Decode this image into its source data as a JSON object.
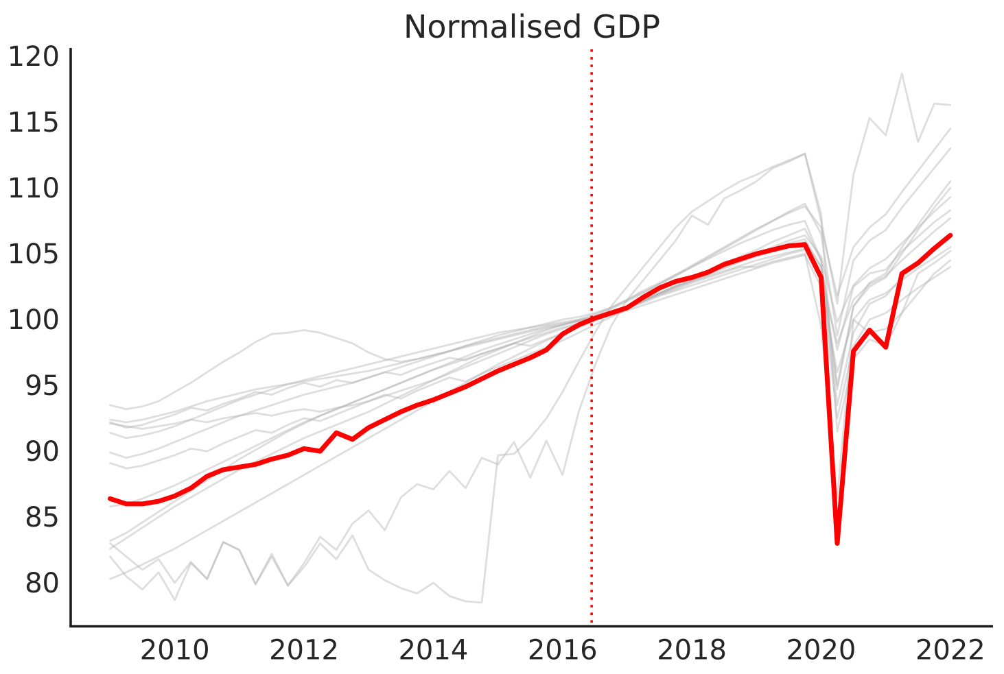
{
  "title": "Normalised GDP",
  "colors": {
    "highlight_line": "#ff0000",
    "other_lines": "#b0b0b0",
    "reference_vline": "#ff0000",
    "axis": "#1a1a1a",
    "tick_text": "#262626",
    "background": "#ffffff"
  },
  "chart_data": {
    "type": "line",
    "title": "Normalised GDP",
    "xlabel": "",
    "ylabel": "",
    "grid": false,
    "legend_position": "none",
    "x_start": 2009.0,
    "x_step": 0.25,
    "xlim": [
      2008.39,
      2022.66
    ],
    "ylim": [
      76.7,
      120.63
    ],
    "x_ticks": [
      2010,
      2012,
      2014,
      2016,
      2018,
      2020,
      2022
    ],
    "y_ticks": [
      80,
      85,
      90,
      95,
      100,
      105,
      110,
      115,
      120
    ],
    "vline_x": 2016.45,
    "vline_style": "dotted",
    "series": [
      {
        "name": "highlighted-country",
        "role": "highlight",
        "values": [
          86.4,
          86.0,
          86.0,
          86.2,
          86.6,
          87.2,
          88.1,
          88.6,
          88.8,
          89.0,
          89.4,
          89.7,
          90.2,
          90.0,
          91.4,
          90.9,
          91.8,
          92.4,
          93.0,
          93.5,
          93.9,
          94.4,
          94.9,
          95.5,
          96.1,
          96.6,
          97.1,
          97.7,
          98.9,
          99.6,
          100.1,
          100.5,
          100.9,
          101.7,
          102.4,
          102.9,
          103.2,
          103.6,
          104.2,
          104.6,
          105.0,
          105.3,
          105.6,
          105.7,
          103.2,
          83.0,
          97.6,
          99.2,
          97.9,
          103.5,
          104.3,
          105.4,
          106.4
        ]
      },
      {
        "name": "series-01",
        "role": "other",
        "values": [
          93.5,
          93.2,
          93.4,
          93.8,
          94.5,
          95.2,
          96.0,
          96.8,
          97.5,
          98.3,
          98.9,
          99.0,
          99.2,
          99.0,
          98.6,
          98.2,
          97.5,
          97.0,
          96.8,
          97.0,
          97.3,
          97.6,
          97.9,
          98.2,
          98.5,
          98.8,
          99.1,
          99.4,
          99.6,
          99.9,
          100.1,
          100.4,
          100.9,
          101.4,
          101.9,
          102.4,
          102.9,
          103.4,
          103.9,
          104.4,
          104.9,
          105.4,
          105.8,
          106.1,
          104.0,
          97.7,
          102.5,
          103.5,
          103.8,
          105.2,
          106.3,
          107.4,
          108.3
        ]
      },
      {
        "name": "series-02",
        "role": "other",
        "values": [
          92.4,
          92.2,
          92.4,
          92.7,
          93.0,
          93.4,
          93.8,
          94.1,
          94.4,
          94.7,
          94.9,
          95.1,
          95.3,
          95.5,
          95.7,
          95.9,
          96.1,
          96.4,
          96.7,
          97.0,
          97.3,
          97.6,
          98.0,
          98.3,
          98.6,
          98.9,
          99.2,
          99.5,
          99.7,
          99.9,
          100.2,
          100.5,
          100.9,
          101.4,
          101.9,
          102.3,
          102.8,
          103.2,
          103.6,
          104.0,
          104.0,
          104.4,
          104.7,
          105.0,
          99.5,
          86.5,
          100.0,
          99.0,
          99.3,
          100.5,
          103.5,
          104.3,
          105.2
        ]
      },
      {
        "name": "series-03",
        "role": "other",
        "values": [
          92.2,
          91.8,
          92.0,
          92.4,
          92.8,
          93.3,
          93.1,
          93.6,
          94.0,
          94.5,
          94.3,
          94.8,
          95.2,
          94.9,
          95.4,
          95.2,
          95.6,
          96.0,
          95.8,
          96.3,
          96.7,
          97.1,
          96.9,
          97.4,
          97.8,
          98.2,
          98.0,
          98.5,
          98.9,
          99.4,
          99.9,
          100.4,
          100.9,
          101.5,
          102.0,
          102.6,
          103.1,
          103.7,
          104.2,
          104.8,
          105.3,
          105.9,
          106.4,
          106.9,
          104.5,
          94.7,
          101.0,
          102.8,
          103.5,
          105.5,
          107.2,
          108.9,
          110.5
        ]
      },
      {
        "name": "series-04",
        "role": "other",
        "values": [
          92.1,
          91.9,
          91.7,
          91.9,
          92.1,
          92.4,
          92.2,
          92.5,
          92.7,
          92.9,
          92.7,
          93.0,
          93.2,
          93.0,
          93.3,
          93.5,
          93.8,
          94.2,
          94.6,
          95.0,
          95.4,
          95.9,
          96.4,
          96.9,
          97.4,
          97.9,
          98.4,
          98.9,
          99.3,
          99.7,
          100.1,
          100.5,
          100.9,
          101.3,
          101.8,
          102.2,
          102.6,
          103.0,
          103.4,
          103.8,
          104.2,
          104.6,
          105.0,
          105.3,
          103.0,
          98.2,
          101.5,
          102.7,
          103.3,
          104.5,
          105.6,
          106.7,
          107.7
        ]
      },
      {
        "name": "series-05",
        "role": "other",
        "values": [
          91.4,
          91.0,
          91.2,
          91.5,
          91.9,
          92.4,
          92.9,
          93.4,
          93.9,
          94.3,
          94.7,
          95.1,
          95.4,
          95.7,
          96.0,
          96.3,
          96.6,
          96.9,
          97.2,
          97.5,
          97.8,
          98.1,
          98.4,
          98.7,
          99.0,
          99.2,
          99.4,
          99.6,
          99.8,
          100.0,
          100.2,
          100.5,
          101.0,
          101.5,
          102.0,
          102.5,
          103.0,
          103.5,
          104.0,
          104.5,
          105.0,
          105.5,
          106.0,
          106.4,
          104.8,
          99.8,
          102.6,
          103.9,
          104.6,
          105.8,
          107.0,
          108.2,
          109.3
        ]
      },
      {
        "name": "series-06",
        "role": "other",
        "values": [
          89.9,
          89.5,
          89.8,
          90.2,
          90.7,
          91.2,
          91.7,
          92.2,
          92.7,
          93.1,
          93.5,
          93.9,
          94.3,
          94.6,
          94.9,
          95.2,
          95.6,
          96.0,
          96.4,
          96.8,
          97.2,
          97.6,
          98.0,
          98.4,
          98.8,
          99.1,
          99.4,
          99.7,
          100.0,
          100.2,
          100.5,
          100.9,
          101.5,
          102.1,
          102.7,
          103.3,
          104.0,
          104.7,
          105.4,
          106.1,
          106.8,
          107.5,
          108.2,
          108.8,
          106.5,
          98.8,
          104.5,
          106.0,
          106.8,
          108.5,
          110.0,
          111.5,
          113.0
        ]
      },
      {
        "name": "series-07",
        "role": "other",
        "values": [
          85.8,
          86.0,
          86.4,
          86.9,
          87.4,
          88.0,
          88.6,
          89.2,
          89.8,
          90.4,
          91.0,
          91.6,
          92.2,
          92.7,
          93.2,
          93.7,
          94.2,
          94.7,
          95.2,
          95.7,
          96.2,
          96.7,
          97.2,
          97.7,
          98.1,
          98.5,
          98.9,
          99.3,
          99.6,
          99.9,
          100.3,
          100.8,
          101.4,
          102.0,
          102.7,
          103.4,
          104.1,
          104.8,
          105.5,
          106.2,
          106.9,
          107.5,
          108.1,
          108.6,
          107.0,
          101.8,
          105.5,
          107.0,
          108.0,
          109.7,
          111.3,
          112.9,
          114.5
        ]
      },
      {
        "name": "series-08",
        "role": "other",
        "values": [
          83.2,
          83.8,
          84.6,
          85.4,
          86.2,
          87.0,
          87.8,
          88.6,
          89.4,
          90.1,
          90.8,
          91.5,
          92.1,
          92.7,
          93.2,
          93.7,
          94.2,
          94.7,
          95.2,
          95.7,
          96.2,
          96.6,
          97.0,
          97.4,
          97.8,
          98.2,
          98.6,
          99.0,
          99.4,
          99.7,
          100.0,
          100.3,
          100.7,
          101.1,
          101.5,
          101.9,
          102.3,
          102.7,
          103.1,
          103.5,
          103.9,
          104.3,
          104.6,
          104.9,
          102.5,
          96.0,
          100.0,
          101.5,
          102.0,
          103.0,
          103.9,
          104.7,
          105.5
        ]
      },
      {
        "name": "series-09",
        "role": "other",
        "values": [
          83.0,
          82.0,
          81.0,
          81.8,
          80.0,
          81.6,
          80.3,
          83.1,
          82.5,
          79.9,
          82.0,
          79.8,
          81.5,
          83.5,
          82.5,
          84.5,
          85.5,
          84.0,
          86.5,
          87.5,
          87.1,
          88.5,
          87.2,
          89.5,
          89.0,
          90.7,
          88.0,
          90.8,
          88.2,
          93.0,
          96.5,
          99.5,
          101.5,
          103.0,
          104.5,
          106.0,
          107.9,
          107.2,
          109.2,
          109.8,
          110.5,
          111.5,
          112.0,
          112.6,
          108.0,
          91.5,
          97.0,
          98.5,
          98.0,
          100.5,
          102.0,
          103.5,
          104.5
        ]
      },
      {
        "name": "series-10",
        "role": "other",
        "values": [
          82.6,
          83.4,
          84.2,
          85.0,
          85.8,
          86.5,
          87.2,
          87.9,
          88.6,
          89.2,
          89.8,
          90.4,
          91.0,
          91.5,
          92.0,
          92.5,
          93.0,
          93.6,
          94.2,
          94.8,
          95.4,
          96.0,
          96.6,
          97.2,
          97.7,
          98.2,
          98.7,
          99.2,
          99.6,
          100.0,
          100.4,
          100.9,
          101.5,
          102.2,
          102.8,
          103.4,
          104.0,
          104.6,
          105.2,
          105.8,
          106.3,
          106.8,
          107.2,
          107.5,
          104.5,
          95.0,
          101.0,
          102.5,
          103.2,
          105.0,
          106.8,
          108.5,
          110.0
        ]
      },
      {
        "name": "series-11",
        "role": "other",
        "values": [
          80.3,
          80.8,
          81.4,
          82.0,
          82.6,
          83.3,
          84.0,
          84.7,
          85.4,
          86.1,
          86.8,
          87.5,
          88.2,
          88.9,
          89.6,
          90.3,
          91.0,
          91.7,
          92.4,
          93.1,
          93.8,
          94.5,
          95.2,
          95.9,
          96.6,
          97.2,
          97.8,
          98.4,
          99.0,
          99.5,
          100.0,
          100.5,
          101.0,
          101.5,
          102.0,
          102.5,
          102.9,
          103.3,
          103.7,
          104.1,
          104.5,
          104.8,
          105.1,
          105.4,
          103.0,
          92.5,
          98.0,
          100.0,
          100.5,
          101.5,
          102.4,
          103.2,
          104.0
        ]
      },
      {
        "name": "series-12",
        "role": "other",
        "values": [
          89.1,
          88.7,
          88.9,
          89.3,
          89.7,
          90.2,
          90.0,
          90.6,
          91.1,
          91.6,
          91.4,
          92.0,
          92.5,
          92.3,
          92.8,
          93.3,
          93.8,
          94.3,
          94.0,
          94.6,
          95.1,
          95.6,
          95.3,
          95.9,
          96.4,
          96.9,
          97.4,
          97.9,
          98.4,
          99.0,
          99.6,
          100.2,
          100.8,
          101.4,
          102.0,
          102.5,
          103.0,
          103.5,
          104.0,
          104.4,
          104.8,
          105.2,
          105.6,
          105.9,
          104.0,
          93.5,
          99.0,
          101.2,
          101.8,
          103.2,
          104.3,
          105.5,
          106.5
        ]
      },
      {
        "name": "series-13",
        "role": "other",
        "values": [
          82.0,
          80.5,
          79.5,
          80.8,
          78.7,
          81.5,
          80.3,
          83.1,
          82.5,
          79.9,
          82.2,
          79.8,
          81.2,
          83.0,
          81.8,
          83.6,
          81.0,
          80.2,
          79.6,
          79.2,
          80.0,
          79.0,
          78.6,
          78.5,
          89.7,
          89.8,
          91.0,
          92.5,
          94.5,
          96.8,
          99.0,
          101.0,
          102.5,
          104.0,
          105.5,
          107.0,
          108.2,
          109.0,
          109.8,
          110.5,
          111.0,
          111.6,
          112.1,
          112.6,
          107.5,
          101.2,
          111.0,
          115.3,
          114.0,
          118.7,
          113.5,
          116.4,
          116.3
        ]
      }
    ]
  }
}
